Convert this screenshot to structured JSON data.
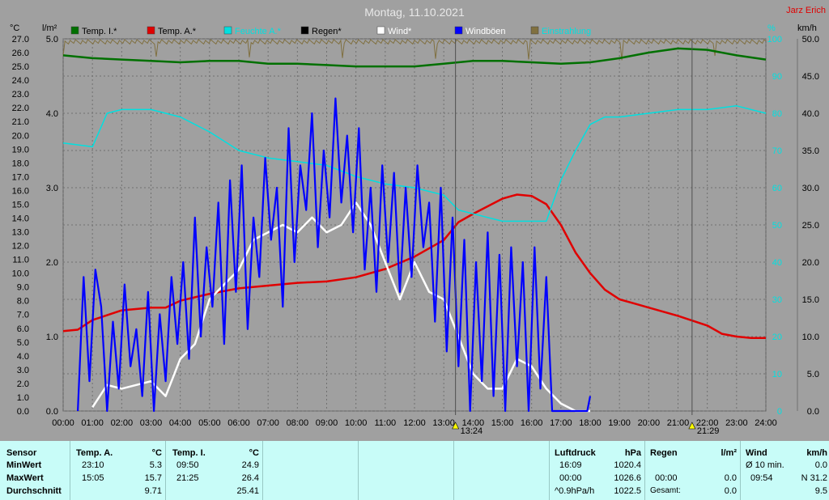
{
  "title": "Montag, 11.10.2021",
  "author": "Jarz Erich",
  "colors": {
    "background": "#a0a0a0",
    "temp_inside": "#007000",
    "temp_outside": "#e00000",
    "humidity": "#00e0e0",
    "rain": "#000000",
    "wind": "#ffffff",
    "gusts": "#0000ff",
    "radiation": "#807040",
    "stats_bg": "#c8fcf8"
  },
  "legend": [
    {
      "label": "Temp. I.*",
      "color": "#007000",
      "text_color": "#000000"
    },
    {
      "label": "Temp. A.*",
      "color": "#e00000",
      "text_color": "#000000"
    },
    {
      "label": "Feuchte A.*",
      "color": "#00e0e0",
      "text_color": "#00e0e0"
    },
    {
      "label": "Regen*",
      "color": "#000000",
      "text_color": "#000000"
    },
    {
      "label": "Wind*",
      "color": "#ffffff",
      "text_color": "#ffffff"
    },
    {
      "label": "Windböen",
      "color": "#0000ff",
      "text_color": "#ffffff"
    },
    {
      "label": "Einstrahlung",
      "color": "#807040",
      "text_color": "#00e0e0"
    }
  ],
  "chart_data": {
    "type": "line",
    "title": "Montag, 11.10.2021",
    "axes": {
      "temp": {
        "unit": "°C",
        "range": [
          0,
          27.0
        ],
        "ticks": [
          "0.0",
          "1.0",
          "2.0",
          "3.0",
          "4.0",
          "5.0",
          "6.0",
          "7.0",
          "8.0",
          "9.0",
          "10.0",
          "11.0",
          "12.0",
          "13.0",
          "14.0",
          "15.0",
          "16.0",
          "17.0",
          "18.0",
          "19.0",
          "20.0",
          "21.0",
          "22.0",
          "23.0",
          "24.0",
          "25.0",
          "26.0",
          "27.0"
        ]
      },
      "rain": {
        "unit": "l/m²",
        "range": [
          0,
          5.0
        ],
        "ticks": [
          "0.0",
          "1.0",
          "2.0",
          "3.0",
          "4.0",
          "5.0"
        ]
      },
      "humidity": {
        "unit": "%",
        "range": [
          0,
          100
        ],
        "ticks": [
          "0",
          "10",
          "20",
          "30",
          "40",
          "50",
          "60",
          "70",
          "80",
          "90",
          "100"
        ]
      },
      "wind": {
        "unit": "km/h",
        "range": [
          0,
          50
        ],
        "ticks": [
          "0.0",
          "5.0",
          "10.0",
          "15.0",
          "20.0",
          "25.0",
          "30.0",
          "35.0",
          "40.0",
          "45.0",
          "50.0"
        ]
      },
      "x_ticks": [
        "00:00",
        "01:00",
        "02:00",
        "03:00",
        "04:00",
        "05:00",
        "06:00",
        "07:00",
        "08:00",
        "09:00",
        "10:00",
        "11:00",
        "12:00",
        "13:00",
        "14:00",
        "15:00",
        "16:00",
        "17:00",
        "18:00",
        "19:00",
        "20:00",
        "21:00",
        "22:00",
        "23:00",
        "24:00"
      ]
    },
    "markers": [
      {
        "label": "13:24",
        "hour": 13.4
      },
      {
        "label": "21:29",
        "hour": 21.48
      }
    ],
    "grid": true,
    "series": [
      {
        "name": "Temp. I.*",
        "axis": "temp",
        "color": "#007000",
        "x": [
          0,
          1,
          2,
          3,
          4,
          5,
          6,
          7,
          8,
          9,
          10,
          11,
          12,
          13,
          14,
          15,
          16,
          17,
          18,
          19,
          20,
          21,
          22,
          23,
          24
        ],
        "y": [
          25.8,
          25.6,
          25.5,
          25.4,
          25.3,
          25.4,
          25.4,
          25.2,
          25.2,
          25.1,
          25.0,
          25.0,
          25.0,
          25.2,
          25.4,
          25.4,
          25.3,
          25.2,
          25.3,
          25.6,
          26.0,
          26.3,
          26.2,
          25.8,
          25.5
        ]
      },
      {
        "name": "Temp. A.*",
        "axis": "temp",
        "color": "#e00000",
        "x": [
          0,
          0.5,
          1,
          2,
          3,
          3.5,
          4,
          5,
          6,
          7,
          8,
          9,
          10,
          11,
          12,
          13,
          13.5,
          14,
          15,
          15.5,
          16,
          16.5,
          17,
          17.5,
          18,
          18.5,
          19,
          19.5,
          20,
          21,
          22,
          22.5,
          23,
          23.5,
          24
        ],
        "y": [
          5.8,
          5.9,
          6.6,
          7.3,
          7.5,
          7.5,
          8.0,
          8.5,
          8.9,
          9.1,
          9.3,
          9.4,
          9.7,
          10.3,
          11.2,
          12.4,
          13.7,
          14.3,
          15.4,
          15.7,
          15.6,
          15.0,
          13.5,
          11.5,
          10.0,
          8.8,
          8.1,
          7.8,
          7.5,
          6.9,
          6.2,
          5.6,
          5.4,
          5.3,
          5.3
        ]
      },
      {
        "name": "Feuchte A.*",
        "axis": "humidity",
        "color": "#00e0e0",
        "x": [
          0,
          1,
          1.5,
          2,
          3,
          4,
          5,
          6,
          7,
          8,
          9,
          10,
          11,
          12,
          13,
          13.5,
          14,
          15,
          16,
          16.5,
          17,
          17.5,
          18,
          18.5,
          19,
          20,
          21,
          22,
          23,
          24
        ],
        "y": [
          72,
          71,
          80,
          81,
          81,
          79,
          75,
          70,
          68,
          67,
          66,
          63,
          61,
          60,
          58,
          54,
          53,
          51,
          51,
          51,
          62,
          70,
          77,
          79,
          79,
          80,
          81,
          81,
          82,
          80
        ]
      },
      {
        "name": "Wind*",
        "axis": "wind",
        "color": "#ffffff",
        "x": [
          1.0,
          1.5,
          2.0,
          2.5,
          3.0,
          3.5,
          4.0,
          4.5,
          5.0,
          5.5,
          6.0,
          6.5,
          7.0,
          7.5,
          8.0,
          8.5,
          9.0,
          9.5,
          10.0,
          10.5,
          11.0,
          11.5,
          12.0,
          12.5,
          13.0,
          13.5,
          14.0,
          14.5,
          15.0,
          15.5,
          16.0,
          16.5,
          17.0,
          17.5,
          18.0
        ],
        "y": [
          0.5,
          3.5,
          3,
          3.5,
          4,
          2,
          7,
          9,
          15,
          17,
          19,
          23,
          24,
          25,
          24,
          26,
          24,
          25,
          28,
          25,
          20,
          15,
          20,
          16,
          15,
          10,
          5,
          3,
          3,
          7,
          6,
          3,
          1,
          0,
          0
        ]
      },
      {
        "name": "Windböen",
        "axis": "wind",
        "color": "#0000ff",
        "x": [
          0.5,
          0.7,
          0.9,
          1.1,
          1.3,
          1.5,
          1.7,
          1.9,
          2.1,
          2.3,
          2.5,
          2.7,
          2.9,
          3.1,
          3.3,
          3.5,
          3.7,
          3.9,
          4.1,
          4.3,
          4.5,
          4.7,
          4.9,
          5.1,
          5.3,
          5.5,
          5.7,
          5.9,
          6.1,
          6.3,
          6.5,
          6.7,
          6.9,
          7.1,
          7.3,
          7.5,
          7.7,
          7.9,
          8.1,
          8.3,
          8.5,
          8.7,
          8.9,
          9.1,
          9.3,
          9.5,
          9.7,
          9.9,
          10.1,
          10.3,
          10.5,
          10.7,
          10.9,
          11.1,
          11.3,
          11.5,
          11.7,
          11.9,
          12.1,
          12.3,
          12.5,
          12.7,
          12.9,
          13.1,
          13.3,
          13.5,
          13.7,
          13.9,
          14.1,
          14.3,
          14.5,
          14.7,
          14.9,
          15.1,
          15.3,
          15.5,
          15.7,
          15.9,
          16.1,
          16.3,
          16.5,
          16.7,
          17.9,
          18.0
        ],
        "y": [
          0,
          18,
          4,
          19,
          14,
          0,
          12,
          3,
          17,
          6,
          11,
          2,
          16,
          0,
          13,
          4,
          18,
          9,
          20,
          7,
          26,
          10,
          22,
          14,
          28,
          9,
          31,
          16,
          33,
          11,
          26,
          18,
          34,
          23,
          30,
          14,
          38,
          20,
          33,
          27,
          40,
          22,
          35,
          26,
          42,
          28,
          37,
          24,
          38,
          19,
          30,
          16,
          33,
          20,
          32,
          16,
          30,
          18,
          33,
          22,
          28,
          12,
          30,
          8,
          26,
          6,
          23,
          0,
          20,
          4,
          24,
          2,
          21,
          0,
          22,
          6,
          20,
          0,
          22,
          3,
          18,
          0,
          0,
          2
        ]
      }
    ]
  },
  "stats": {
    "sensor": {
      "header": "Sensor",
      "rows": [
        "MinWert",
        "MaxWert",
        "Durchschnitt"
      ]
    },
    "temp_a": {
      "header": "Temp. A.",
      "unit": "°C",
      "times": [
        "23:10",
        "15:05",
        ""
      ],
      "values": [
        "5.3",
        "15.7",
        "9.71"
      ]
    },
    "temp_i": {
      "header": "Temp. I.",
      "unit": "°C",
      "times": [
        "09:50",
        "21:25",
        ""
      ],
      "values": [
        "24.9",
        "26.4",
        "25.41"
      ]
    },
    "pressure": {
      "header": "Luftdruck",
      "unit": "hPa",
      "times": [
        "16:09",
        "00:00",
        "^0.9hPa/h"
      ],
      "values": [
        "1020.4",
        "1026.6",
        "1022.5"
      ]
    },
    "rain": {
      "header": "Regen",
      "unit": "l/m²",
      "times": [
        "",
        "00:00",
        "Gesamt:"
      ],
      "values": [
        "",
        "0.0",
        "0.0"
      ]
    },
    "wind": {
      "header": "Wind",
      "unit": "km/h",
      "times": [
        "Ø 10 min.",
        "09:54",
        ""
      ],
      "values": [
        "0.0",
        "N 31.2",
        "9.5"
      ]
    }
  }
}
